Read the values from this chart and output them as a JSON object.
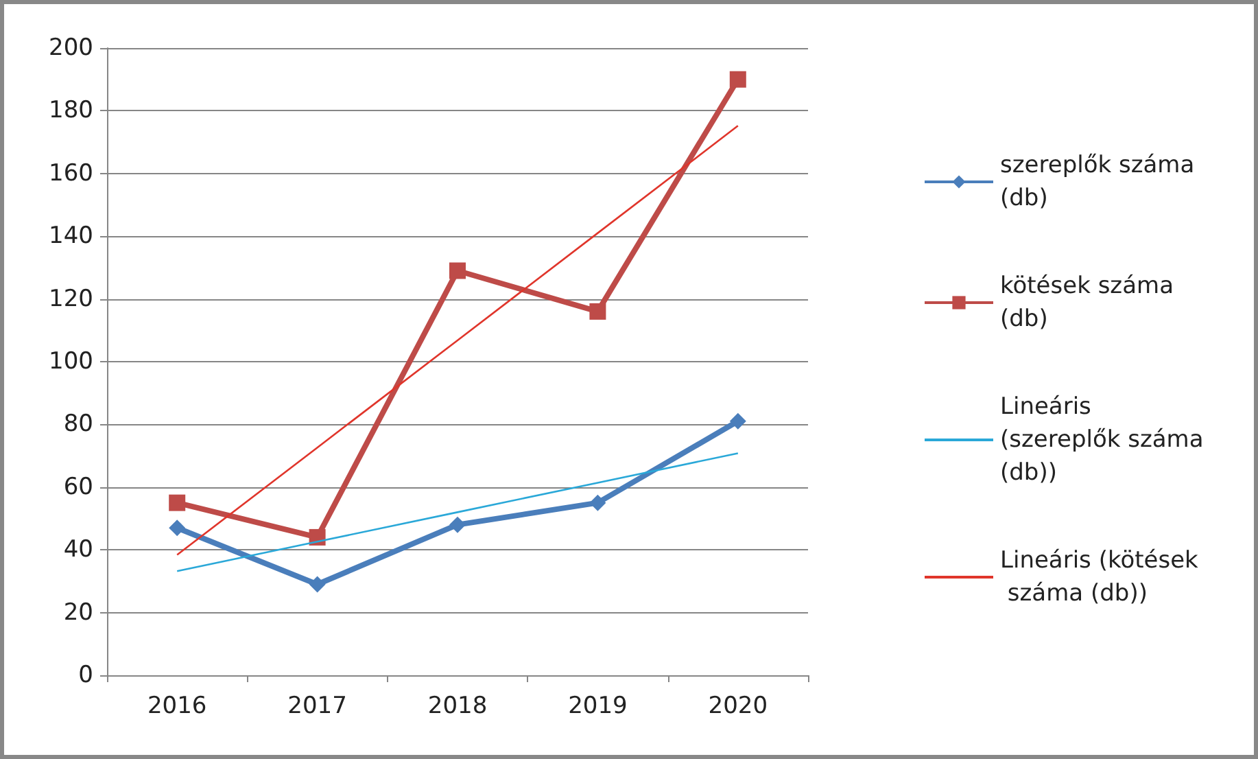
{
  "chart_data": {
    "type": "line",
    "categories": [
      "2016",
      "2017",
      "2018",
      "2019",
      "2020"
    ],
    "series": [
      {
        "name": "szereplők száma (db)",
        "color": "#4a7ebb",
        "values": [
          47,
          29,
          48,
          55,
          81
        ],
        "marker": "diamond"
      },
      {
        "name": "kötések száma (db)",
        "color": "#be4b48",
        "values": [
          55,
          44,
          129,
          116,
          190
        ],
        "marker": "square"
      },
      {
        "name": "Lineáris (szereplők száma (db))",
        "color": "#2aa8d8",
        "values": [
          33.2,
          42.6,
          52,
          61.4,
          70.8
        ],
        "marker": "none"
      },
      {
        "name": "Lineáris (kötések száma (db))",
        "color": "#e0352b",
        "values": [
          38.4,
          72.6,
          106.8,
          141,
          175.2
        ],
        "marker": "none"
      }
    ],
    "ylim": [
      0,
      200
    ],
    "yticks": [
      0,
      20,
      40,
      60,
      80,
      100,
      120,
      140,
      160,
      180,
      200
    ],
    "grid": "y",
    "legend": "right"
  }
}
